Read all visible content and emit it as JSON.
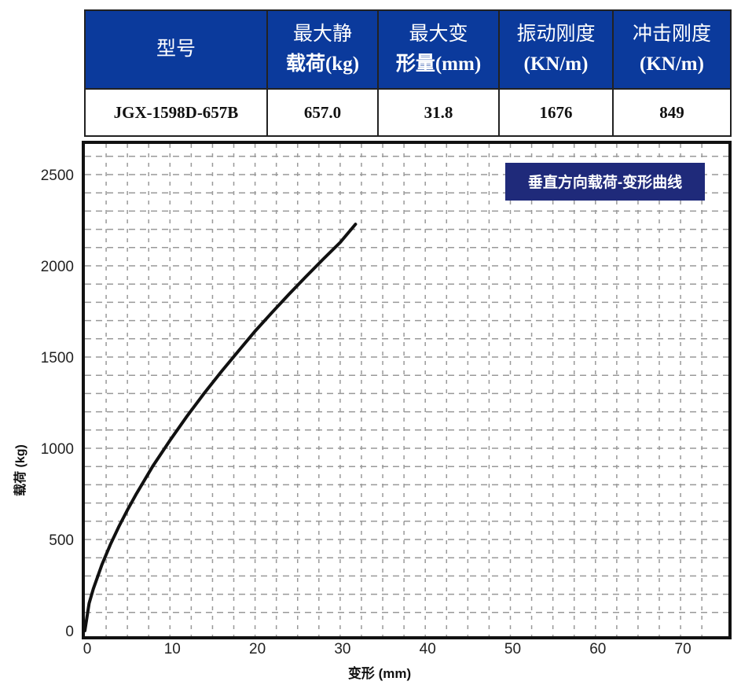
{
  "table": {
    "headers": [
      {
        "line1": "型号",
        "line2": ""
      },
      {
        "line1": "最大静",
        "line2": "载荷(kg)"
      },
      {
        "line1": "最大变",
        "line2": "形量(mm)"
      },
      {
        "line1": "振动刚度",
        "line2": "(KN/m)"
      },
      {
        "line1": "冲击刚度",
        "line2": "(KN/m)"
      }
    ],
    "row": [
      "JGX-1598D-657B",
      "657.0",
      "31.8",
      "1676",
      "849"
    ],
    "header_color": "#0b3a9c"
  },
  "chart_data": {
    "type": "line",
    "title": "垂直方向载荷-变形曲线",
    "title_bg": "#1f2a7a",
    "xlabel": "变形 (mm)",
    "ylabel": "载荷 (kg)",
    "xlim": [
      0,
      75
    ],
    "ylim": [
      0,
      2650
    ],
    "xticks": [
      0,
      10,
      20,
      30,
      40,
      50,
      60,
      70
    ],
    "yticks": [
      0,
      500,
      1000,
      1500,
      2000,
      2500
    ],
    "grid": true,
    "legend": "top-right",
    "series": [
      {
        "color": "#111111",
        "x": [
          0,
          0.5,
          1,
          2,
          3,
          4,
          5,
          6,
          8,
          10,
          12,
          14,
          16,
          18,
          20,
          22,
          24,
          26,
          28,
          30,
          31.8
        ],
        "y": [
          0,
          150,
          230,
          362,
          473,
          571,
          662,
          746,
          903,
          1043,
          1176,
          1300,
          1418,
          1530,
          1642,
          1745,
          1845,
          1942,
          2036,
          2128,
          2228
        ]
      }
    ]
  }
}
